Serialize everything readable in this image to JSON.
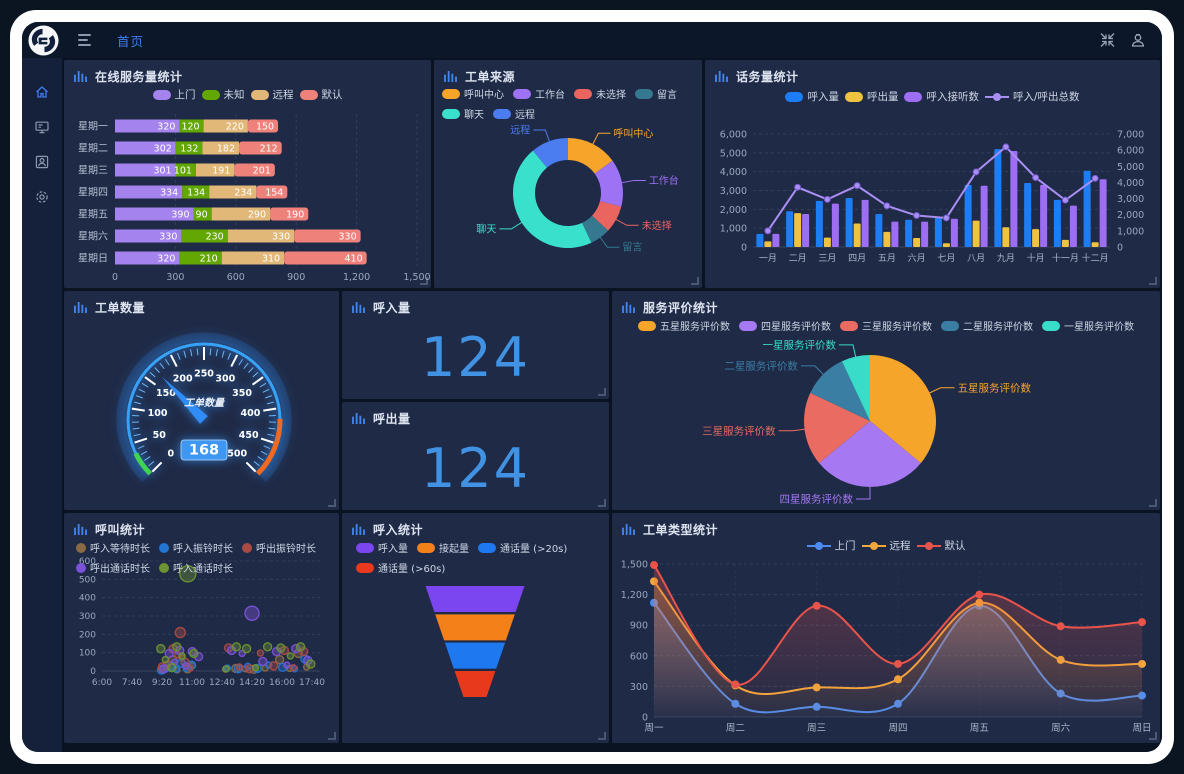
{
  "app": {
    "topbar": {
      "tab": "首页",
      "icons": {
        "menu": "hamburger-icon",
        "collapse": "collapse-icon",
        "user": "user-icon"
      }
    },
    "sidebar": {
      "items": [
        {
          "icon": "home",
          "active": true
        },
        {
          "icon": "monitor",
          "active": false
        },
        {
          "icon": "account",
          "active": false
        },
        {
          "icon": "settings",
          "active": false
        }
      ]
    },
    "colors": {
      "accent": "#3f7ef0",
      "panel_bg": "#1f2a47",
      "app_bg": "#0a1322",
      "number_blue": "#4292e4"
    }
  },
  "chart_data": [
    {
      "id": "online-service",
      "type": "stacked-bar-horizontal",
      "title": "在线服务量统计",
      "categories": [
        "星期一",
        "星期二",
        "星期三",
        "星期四",
        "星期五",
        "星期六",
        "星期日"
      ],
      "series": [
        {
          "name": "上门",
          "color": "#a583ee",
          "values": [
            320,
            302,
            301,
            334,
            390,
            330,
            320
          ]
        },
        {
          "name": "未知",
          "color": "#63a802",
          "values": [
            120,
            132,
            101,
            134,
            90,
            230,
            210
          ]
        },
        {
          "name": "远程",
          "color": "#e2b878",
          "values": [
            220,
            182,
            191,
            234,
            290,
            330,
            310
          ]
        },
        {
          "name": "默认",
          "color": "#ef817b",
          "values": [
            150,
            212,
            201,
            154,
            190,
            330,
            410
          ]
        }
      ],
      "x_max": 1500,
      "x_ticks": [
        0,
        300,
        600,
        900,
        1200,
        1500
      ]
    },
    {
      "id": "order-source",
      "type": "donut",
      "title": "工单来源",
      "slices": [
        {
          "name": "呼叫中心",
          "color": "#f6a42a",
          "value": 15
        },
        {
          "name": "工作台",
          "color": "#9d72f5",
          "value": 14
        },
        {
          "name": "未选择",
          "color": "#eb6560",
          "value": 8
        },
        {
          "name": "留言",
          "color": "#35788f",
          "value": 6
        },
        {
          "name": "聊天",
          "color": "#39e0cc",
          "value": 46
        },
        {
          "name": "远程",
          "color": "#4b7df0",
          "value": 11
        }
      ]
    },
    {
      "id": "traffic",
      "type": "bar-line",
      "title": "话务量统计",
      "categories": [
        "一月",
        "二月",
        "三月",
        "四月",
        "五月",
        "六月",
        "七月",
        "八月",
        "九月",
        "十月",
        "十一月",
        "十二月"
      ],
      "bar_series": [
        {
          "name": "呼入量",
          "color": "#1d7df5",
          "values": [
            700,
            1900,
            2450,
            2600,
            1750,
            1450,
            1600,
            3300,
            5200,
            3400,
            2500,
            4050
          ]
        },
        {
          "name": "呼出量",
          "color": "#efc33f",
          "values": [
            300,
            1800,
            500,
            1250,
            800,
            480,
            200,
            1400,
            1050,
            950,
            380,
            250
          ]
        },
        {
          "name": "呼入接听数",
          "color": "#9d6ef2",
          "values": [
            700,
            1750,
            2300,
            2500,
            1350,
            1350,
            1500,
            3250,
            5100,
            3300,
            2200,
            3600
          ]
        }
      ],
      "line_series": {
        "name": "呼入/呼出总数",
        "color": "#a98ef3",
        "values": [
          1000,
          3700,
          2950,
          3800,
          2550,
          1950,
          1800,
          4650,
          6200,
          4300,
          2900,
          4250
        ]
      },
      "y_left": {
        "min": 0,
        "max": 6000,
        "step": 1000
      },
      "y_right": {
        "min": 0,
        "max": 7000,
        "step": 1000
      }
    },
    {
      "id": "order-count",
      "type": "gauge",
      "title": "工单数量",
      "label": "工单数量",
      "value": 168,
      "min": 0,
      "max": 500,
      "tick_step": 50,
      "colors": {
        "low": "#3fd254",
        "mid": "#37a2f8",
        "high": "#ef6a20",
        "needle": "#2f8df5",
        "box": "#3e97f3"
      }
    },
    {
      "id": "inbound-count",
      "type": "number",
      "title": "呼入量",
      "value": "124"
    },
    {
      "id": "outbound-count",
      "type": "number",
      "title": "呼出量",
      "value": "124"
    },
    {
      "id": "service-rating",
      "type": "pie",
      "title": "服务评价统计",
      "slices": [
        {
          "name": "五星服务评价数",
          "color": "#f5a52a",
          "value": 36
        },
        {
          "name": "四星服务评价数",
          "color": "#a678f2",
          "value": 28
        },
        {
          "name": "三星服务评价数",
          "color": "#e96b61",
          "value": 18
        },
        {
          "name": "二星服务评价数",
          "color": "#3b7ea3",
          "value": 11
        },
        {
          "name": "一星服务评价数",
          "color": "#38dcc8",
          "value": 7
        }
      ]
    },
    {
      "id": "call-stats",
      "type": "scatter",
      "title": "呼叫统计",
      "x_labels": [
        "6:00",
        "7:40",
        "9:20",
        "11:00",
        "12:40",
        "14:20",
        "16:00",
        "17:40"
      ],
      "x_min": 360,
      "x_max": 1060,
      "y": {
        "min": 0,
        "max": 600,
        "step": 100
      },
      "series": [
        {
          "name": "呼入等待时长",
          "color": "#8a6a45",
          "points": [
            [
              562,
              8,
              4
            ],
            [
              578,
              18,
              3
            ],
            [
              596,
              60,
              4
            ],
            [
              610,
              6,
              3
            ],
            [
              626,
              72,
              3
            ],
            [
              645,
              12,
              4
            ],
            [
              662,
              30,
              3
            ],
            [
              772,
              10,
              3
            ],
            [
              806,
              14,
              4
            ],
            [
              838,
              12,
              3
            ],
            [
              866,
              10,
              4
            ],
            [
              904,
              16,
              3
            ],
            [
              952,
              62,
              4
            ],
            [
              986,
              14,
              3
            ],
            [
              1014,
              96,
              4
            ],
            [
              1042,
              22,
              3
            ]
          ]
        },
        {
          "name": "呼入振铃时长",
          "color": "#2176d2",
          "points": [
            [
              558,
              6,
              4
            ],
            [
              574,
              12,
              3
            ],
            [
              590,
              28,
              4
            ],
            [
              607,
              10,
              3
            ],
            [
              624,
              42,
              4
            ],
            [
              641,
              14,
              3
            ],
            [
              658,
              32,
              4
            ],
            [
              778,
              16,
              3
            ],
            [
              814,
              12,
              4
            ],
            [
              846,
              26,
              3
            ],
            [
              878,
              14,
              4
            ],
            [
              916,
              32,
              3
            ],
            [
              962,
              20,
              4
            ],
            [
              1002,
              12,
              3
            ],
            [
              1036,
              66,
              4
            ]
          ]
        },
        {
          "name": "呼出振铃时长",
          "color": "#a84b45",
          "points": [
            [
              561,
              22,
              4
            ],
            [
              579,
              38,
              3
            ],
            [
              597,
              122,
              4
            ],
            [
              613,
              88,
              3
            ],
            [
              621,
              210,
              5
            ],
            [
              637,
              48,
              4
            ],
            [
              654,
              16,
              3
            ],
            [
              782,
              126,
              4
            ],
            [
              818,
              22,
              3
            ],
            [
              852,
              12,
              4
            ],
            [
              888,
              98,
              3
            ],
            [
              932,
              28,
              4
            ],
            [
              968,
              112,
              4
            ],
            [
              998,
              18,
              3
            ],
            [
              1032,
              106,
              4
            ]
          ]
        },
        {
          "name": "呼出通话时长",
          "color": "#7c52d8",
          "points": [
            [
              566,
              12,
              4
            ],
            [
              584,
              96,
              4
            ],
            [
              602,
              48,
              3
            ],
            [
              619,
              112,
              4
            ],
            [
              639,
              28,
              3
            ],
            [
              661,
              106,
              4
            ],
            [
              682,
              78,
              4
            ],
            [
              792,
              112,
              4
            ],
            [
              827,
              96,
              3
            ],
            [
              860,
              315,
              7
            ],
            [
              896,
              52,
              4
            ],
            [
              942,
              106,
              4
            ],
            [
              976,
              32,
              3
            ],
            [
              1006,
              122,
              4
            ],
            [
              1046,
              58,
              4
            ]
          ]
        },
        {
          "name": "呼入通话时长",
          "color": "#6d9432",
          "points": [
            [
              556,
              122,
              4
            ],
            [
              571,
              62,
              3
            ],
            [
              593,
              18,
              4
            ],
            [
              609,
              132,
              4
            ],
            [
              627,
              82,
              3
            ],
            [
              646,
              530,
              8
            ],
            [
              666,
              96,
              4
            ],
            [
              774,
              12,
              3
            ],
            [
              808,
              132,
              4
            ],
            [
              842,
              122,
              4
            ],
            [
              872,
              18,
              3
            ],
            [
              912,
              132,
              4
            ],
            [
              956,
              126,
              4
            ],
            [
              988,
              82,
              3
            ],
            [
              1022,
              132,
              4
            ],
            [
              1056,
              38,
              4
            ]
          ]
        }
      ]
    },
    {
      "id": "inbound-funnel",
      "type": "funnel",
      "title": "呼入统计",
      "steps": [
        {
          "name": "呼入量",
          "color": "#7b46f0"
        },
        {
          "name": "接起量",
          "color": "#f38019"
        },
        {
          "name": "通话量 (>20s)",
          "color": "#1e78f0"
        },
        {
          "name": "通话量 (>60s)",
          "color": "#e8391d"
        }
      ]
    },
    {
      "id": "order-type",
      "type": "line-smooth",
      "title": "工单类型统计",
      "categories": [
        "周一",
        "周二",
        "周三",
        "周四",
        "周五",
        "周六",
        "周日"
      ],
      "series": [
        {
          "name": "上门",
          "color": "#4d8df0",
          "values": [
            1120,
            130,
            100,
            130,
            1090,
            230,
            210
          ]
        },
        {
          "name": "远程",
          "color": "#f2a93b",
          "values": [
            1330,
            310,
            290,
            370,
            1120,
            560,
            520
          ]
        },
        {
          "name": "默认",
          "color": "#e8534a",
          "values": [
            1490,
            320,
            1090,
            520,
            1200,
            890,
            930
          ]
        }
      ],
      "y": {
        "min": 0,
        "max": 1500,
        "step": 300
      }
    }
  ]
}
